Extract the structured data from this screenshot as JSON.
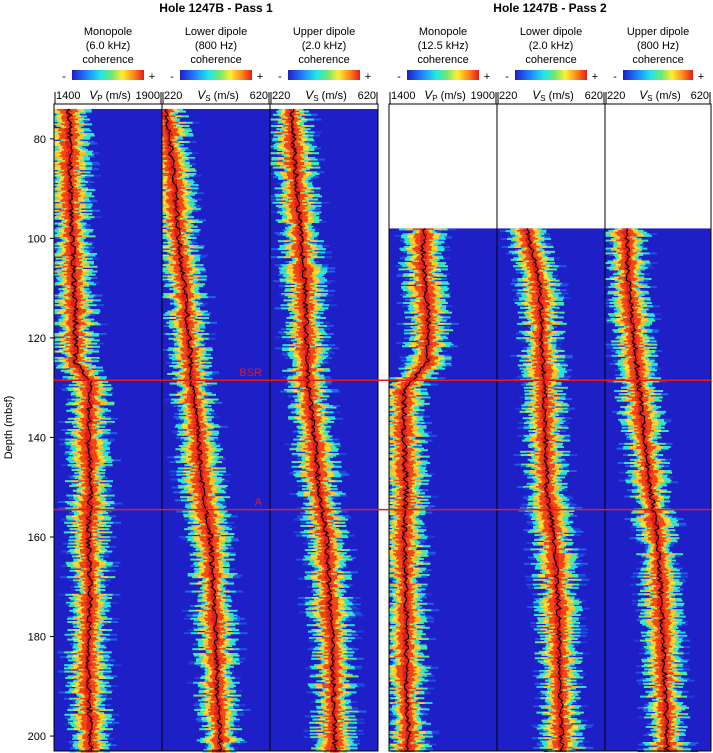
{
  "chart_data": {
    "type": "heatmap",
    "title": "",
    "groups": [
      {
        "title": "Hole 1247B - Pass 1",
        "tracks": [
          {
            "name": "Monopole",
            "freq": "(6.0 kHz)",
            "coh": "coherence",
            "unit": "V",
            "sub": "P",
            "unit_tail": " (m/s)",
            "min": 1400,
            "max": 1900,
            "min_label": "1400",
            "max_label": "1900",
            "data_start": 74,
            "trend": [
              [
                74,
                1470
              ],
              [
                85,
                1475
              ],
              [
                95,
                1480
              ],
              [
                105,
                1490
              ],
              [
                115,
                1500
              ],
              [
                125,
                1500
              ],
              [
                129,
                1570
              ],
              [
                140,
                1560
              ],
              [
                150,
                1570
              ],
              [
                160,
                1560
              ],
              [
                170,
                1570
              ],
              [
                180,
                1560
              ],
              [
                190,
                1560
              ],
              [
                200,
                1570
              ]
            ]
          },
          {
            "name": "Lower dipole",
            "freq": "(800 Hz)",
            "coh": "coherence",
            "unit": "V",
            "sub": "S",
            "unit_tail": " (m/s)",
            "min": 220,
            "max": 620,
            "min_label": "220",
            "max_label": "620",
            "data_start": 74,
            "trend": [
              [
                74,
                235
              ],
              [
                90,
                270
              ],
              [
                100,
                280
              ],
              [
                110,
                305
              ],
              [
                120,
                320
              ],
              [
                128,
                330
              ],
              [
                140,
                355
              ],
              [
                150,
                370
              ],
              [
                160,
                400
              ],
              [
                170,
                410
              ],
              [
                180,
                420
              ],
              [
                190,
                425
              ],
              [
                200,
                435
              ]
            ]
          },
          {
            "name": "Upper dipole",
            "freq": "(2.0 kHz)",
            "coh": "coherence",
            "unit": "V",
            "sub": "S",
            "unit_tail": " (m/s)",
            "min": 220,
            "max": 620,
            "min_label": "220",
            "max_label": "620",
            "data_start": 74,
            "trend": [
              [
                74,
                300
              ],
              [
                90,
                320
              ],
              [
                100,
                335
              ],
              [
                110,
                350
              ],
              [
                120,
                355
              ],
              [
                128,
                360
              ],
              [
                140,
                385
              ],
              [
                150,
                400
              ],
              [
                160,
                430
              ],
              [
                170,
                440
              ],
              [
                180,
                450
              ],
              [
                190,
                455
              ],
              [
                200,
                460
              ]
            ]
          }
        ]
      },
      {
        "title": "Hole 1247B - Pass 2",
        "tracks": [
          {
            "name": "Monopole",
            "freq": "(12.5 kHz)",
            "coh": "coherence",
            "unit": "V",
            "sub": "P",
            "unit_tail": " (m/s)",
            "min": 1400,
            "max": 1900,
            "min_label": "1400",
            "max_label": "1900",
            "data_start": 98,
            "trend": [
              [
                98,
                1560
              ],
              [
                105,
                1560
              ],
              [
                115,
                1580
              ],
              [
                125,
                1580
              ],
              [
                130,
                1470
              ],
              [
                140,
                1470
              ],
              [
                150,
                1480
              ],
              [
                160,
                1470
              ],
              [
                170,
                1480
              ],
              [
                180,
                1480
              ],
              [
                190,
                1480
              ],
              [
                200,
                1490
              ]
            ]
          },
          {
            "name": "Lower dipole",
            "freq": "(2.0 kHz)",
            "coh": "coherence",
            "unit": "V",
            "sub": "S",
            "unit_tail": " (m/s)",
            "min": 220,
            "max": 620,
            "min_label": "220",
            "max_label": "620",
            "data_start": 98,
            "trend": [
              [
                98,
                330
              ],
              [
                110,
                380
              ],
              [
                120,
                385
              ],
              [
                128,
                395
              ],
              [
                140,
                400
              ],
              [
                150,
                405
              ],
              [
                160,
                430
              ],
              [
                170,
                445
              ],
              [
                180,
                450
              ],
              [
                190,
                455
              ],
              [
                200,
                460
              ]
            ]
          },
          {
            "name": "Upper dipole",
            "freq": "(800 Hz)",
            "coh": "coherence",
            "unit": "V",
            "sub": "S",
            "unit_tail": " (m/s)",
            "min": 220,
            "max": 620,
            "min_label": "220",
            "max_label": "620",
            "data_start": 98,
            "trend": [
              [
                98,
                300
              ],
              [
                110,
                310
              ],
              [
                120,
                330
              ],
              [
                128,
                345
              ],
              [
                140,
                370
              ],
              [
                150,
                390
              ],
              [
                160,
                420
              ],
              [
                170,
                430
              ],
              [
                180,
                440
              ],
              [
                190,
                445
              ],
              [
                200,
                455
              ]
            ]
          }
        ]
      }
    ],
    "y_axis": {
      "label": "Depth (mbsf)",
      "min": 73,
      "max": 203,
      "ticks": [
        80,
        100,
        120,
        140,
        160,
        180,
        200
      ],
      "inverted": true
    },
    "colorbar": {
      "minus": "-",
      "plus": "+"
    },
    "markers": [
      {
        "label": "BSR",
        "depth": 128.5
      },
      {
        "label": "A",
        "depth": 154.5
      }
    ],
    "colors": {
      "background": "#1f1fc7",
      "marker": "#e41a1c",
      "trace": "#000000"
    }
  }
}
